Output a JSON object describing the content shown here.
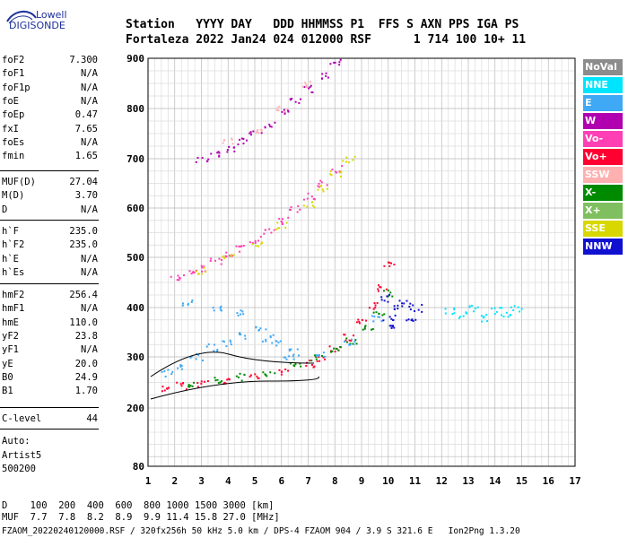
{
  "logo": {
    "line1": "Lowell",
    "line2": "DIGISONDE"
  },
  "header": {
    "row1": "Station   YYYY DAY   DDD HHMMSS P1  FFS S AXN PPS IGA PS",
    "row2": "Fortaleza 2022 Jan24 024 012000 RSF      1 714 100 10+ 11"
  },
  "params_group1": [
    {
      "label": "foF2",
      "value": "7.300"
    },
    {
      "label": "foF1",
      "value": "N/A"
    },
    {
      "label": "foF1p",
      "value": "N/A"
    },
    {
      "label": "foE",
      "value": "N/A"
    },
    {
      "label": "foEp",
      "value": "0.47"
    },
    {
      "label": "fxI",
      "value": "7.65"
    },
    {
      "label": "foEs",
      "value": "N/A"
    },
    {
      "label": "fmin",
      "value": "1.65"
    }
  ],
  "params_group2": [
    {
      "label": "MUF(D)",
      "value": "27.04"
    },
    {
      "label": "M(D)",
      "value": "3.70"
    },
    {
      "label": "D",
      "value": "N/A"
    }
  ],
  "params_group3": [
    {
      "label": "h`F",
      "value": "235.0"
    },
    {
      "label": "h`F2",
      "value": "235.0"
    },
    {
      "label": "h`E",
      "value": "N/A"
    },
    {
      "label": "h`Es",
      "value": "N/A"
    }
  ],
  "params_group4": [
    {
      "label": "hmF2",
      "value": "256.4"
    },
    {
      "label": "hmF1",
      "value": "N/A"
    },
    {
      "label": "hmE",
      "value": "110.0"
    },
    {
      "label": "yF2",
      "value": "23.8"
    },
    {
      "label": "yF1",
      "value": "N/A"
    },
    {
      "label": "yE",
      "value": "20.0"
    },
    {
      "label": "B0",
      "value": "24.9"
    },
    {
      "label": "B1",
      "value": "1.70"
    }
  ],
  "params_group5": [
    {
      "label": "C-level",
      "value": "44"
    }
  ],
  "auto": {
    "line1": "Auto:",
    "line2": "Artist5",
    "line3": "500200"
  },
  "legend": [
    {
      "label": "NoVal",
      "color": "#8c8c8c"
    },
    {
      "label": "NNE",
      "color": "#00e5ff"
    },
    {
      "label": "E",
      "color": "#3fa9f5"
    },
    {
      "label": "W",
      "color": "#b000b0"
    },
    {
      "label": "Vo-",
      "color": "#ff3fb4"
    },
    {
      "label": "Vo+",
      "color": "#ff0030"
    },
    {
      "label": "SSW",
      "color": "#ffb0b0"
    },
    {
      "label": "X-",
      "color": "#008a00"
    },
    {
      "label": "X+",
      "color": "#7fbf5f"
    },
    {
      "label": "SSE",
      "color": "#d8d800"
    },
    {
      "label": "NNW",
      "color": "#1010d0"
    }
  ],
  "chart_data": {
    "type": "scatter",
    "xlim": [
      1,
      17
    ],
    "ylim": [
      80,
      900
    ],
    "xticks": [
      "1",
      "2",
      "3",
      "4",
      "5",
      "6",
      "7",
      "8",
      "9",
      "10",
      "11",
      "12",
      "13",
      "14",
      "15",
      "16",
      "17"
    ],
    "yticks": [
      "80",
      "200",
      "300",
      "400",
      "500",
      "600",
      "700",
      "800",
      "900"
    ],
    "grid": true,
    "series": [
      {
        "name": "Vo+",
        "color": "#ff0030",
        "x": [
          1.7,
          2.2,
          3,
          4,
          5,
          6,
          7,
          7.5,
          8,
          8.5,
          9,
          9.5,
          9.8,
          10
        ],
        "y": [
          240,
          245,
          250,
          255,
          262,
          272,
          288,
          300,
          318,
          340,
          370,
          405,
          440,
          490
        ]
      },
      {
        "name": "X-",
        "color": "#008a00",
        "x": [
          2.5,
          3.5,
          4.5,
          5.5,
          6.5,
          7.3,
          8,
          8.6,
          9.2,
          9.6,
          10
        ],
        "y": [
          250,
          255,
          262,
          270,
          284,
          298,
          315,
          335,
          360,
          390,
          430
        ]
      },
      {
        "name": "E",
        "color": "#3fa9f5",
        "x": [
          1.7,
          2.2,
          2.8,
          3.4,
          4,
          4.6,
          5.2,
          5.8,
          6.3,
          2.5,
          3.5,
          4.5,
          5.5,
          6.5,
          7.5,
          8.5,
          9.5
        ],
        "y": [
          270,
          280,
          300,
          320,
          330,
          345,
          360,
          330,
          300,
          410,
          400,
          390,
          340,
          310,
          305,
          330,
          380
        ]
      },
      {
        "name": "NNW",
        "color": "#1010d0",
        "x": [
          9.8,
          10,
          10.2,
          10.4,
          10.6,
          10.8,
          11
        ],
        "y": [
          420,
          380,
          360,
          400,
          410,
          380,
          400
        ]
      },
      {
        "name": "NNE",
        "color": "#00e5ff",
        "x": [
          12.3,
          12.8,
          13.2,
          13.6,
          14,
          14.4,
          14.8
        ],
        "y": [
          395,
          385,
          400,
          380,
          395,
          390,
          400
        ]
      },
      {
        "name": "Vo-",
        "color": "#ff3fb4",
        "x": [
          2,
          2.5,
          3,
          3.5,
          4,
          4.5,
          5,
          5.5,
          6,
          6.5,
          7,
          7.5,
          8
        ],
        "y": [
          460,
          470,
          480,
          492,
          505,
          520,
          538,
          555,
          575,
          600,
          625,
          650,
          680
        ]
      },
      {
        "name": "SSE",
        "color": "#d8d800",
        "x": [
          3,
          4,
          5,
          6,
          7,
          7.5,
          8,
          8.5
        ],
        "y": [
          475,
          500,
          530,
          565,
          610,
          640,
          670,
          700
        ]
      },
      {
        "name": "W",
        "color": "#b000b0",
        "x": [
          3,
          3.5,
          4,
          4.5,
          5,
          5.5,
          6,
          6.5,
          7,
          7.5,
          8
        ],
        "y": [
          700,
          710,
          720,
          735,
          750,
          770,
          795,
          815,
          840,
          865,
          895
        ]
      },
      {
        "name": "SSW",
        "color": "#ffb0b0",
        "x": [
          4,
          5,
          6,
          7
        ],
        "y": [
          735,
          760,
          800,
          850
        ]
      }
    ]
  },
  "footer": {
    "d_row": "D    100  200  400  600  800 1000 1500 3000 [km]",
    "muf_row": "MUF  7.7  7.8  8.2  8.9  9.9 11.4 15.8 27.0 [MHz]",
    "file_row": "FZAOM_20220240120000.RSF / 320fx256h 50 kHz 5.0 km / DPS-4 FZAOM 904 / 3.9 S 321.6 E   Ion2Png 1.3.20"
  }
}
